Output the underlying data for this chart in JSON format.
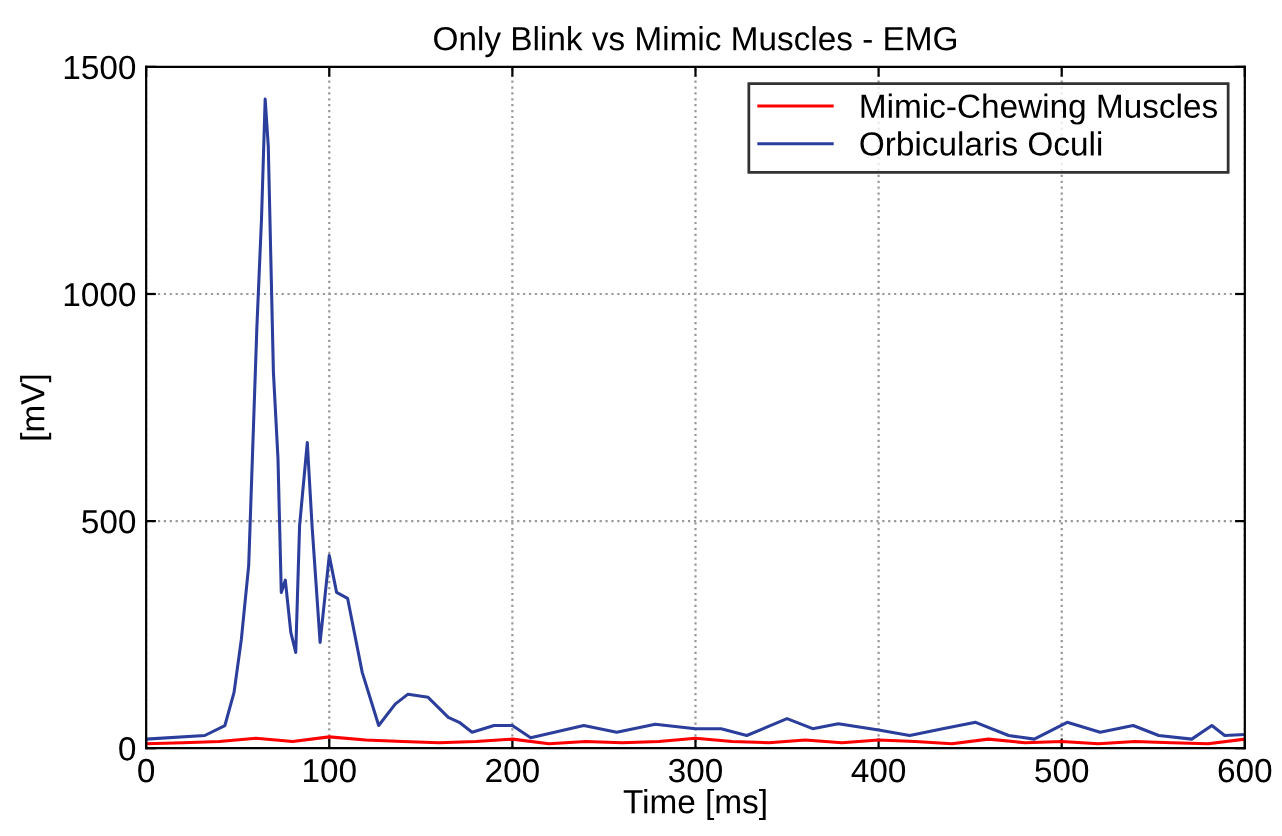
{
  "chart_data": {
    "type": "line",
    "title": "Only Blink vs Mimic Muscles - EMG",
    "xlabel": "Time [ms]",
    "ylabel": "[mV]",
    "xlim": [
      0,
      600
    ],
    "ylim": [
      0,
      1500
    ],
    "xticks": [
      0,
      100,
      200,
      300,
      400,
      500,
      600
    ],
    "yticks": [
      0,
      500,
      1000,
      1500
    ],
    "grid": true,
    "legend": "top right",
    "line_style": "solid",
    "marker": "none",
    "series": [
      {
        "name": "Mimic-Chewing Muscles",
        "color": "#ff0000",
        "x": [
          0,
          20,
          40,
          60,
          80,
          100,
          120,
          140,
          160,
          180,
          200,
          220,
          240,
          260,
          280,
          300,
          320,
          340,
          360,
          380,
          400,
          420,
          440,
          460,
          480,
          500,
          520,
          540,
          560,
          580,
          600
        ],
        "values": [
          10,
          12,
          15,
          22,
          15,
          25,
          18,
          15,
          12,
          15,
          20,
          10,
          15,
          12,
          15,
          22,
          15,
          12,
          18,
          12,
          18,
          15,
          10,
          20,
          12,
          15,
          10,
          15,
          12,
          10,
          20
        ]
      },
      {
        "name": "Orbicularis Oculi",
        "color": "#2b3e9c",
        "x": [
          0,
          32,
          43,
          48,
          52,
          56,
          60.5,
          63,
          65,
          66.7,
          69.5,
          72,
          73.8,
          76,
          79,
          81.7,
          83.8,
          88,
          90.6,
          95,
          100,
          104,
          110,
          118,
          127,
          136,
          143,
          154,
          165,
          171,
          178,
          190,
          200,
          210,
          239,
          257,
          278,
          300,
          314,
          328,
          350,
          364,
          378,
          400,
          417,
          435,
          453,
          471,
          485,
          503,
          521,
          539,
          553,
          571,
          582,
          589,
          600
        ],
        "values": [
          20,
          28,
          50,
          123,
          240,
          402,
          930,
          1165,
          1429,
          1325,
          828,
          637,
          343,
          370,
          255,
          211,
          490,
          673,
          490,
          233,
          424,
          343,
          330,
          167,
          50,
          97,
          119,
          112,
          68,
          57,
          35,
          50,
          50,
          23,
          50,
          35,
          53,
          43,
          43,
          28,
          65,
          43,
          54,
          40,
          28,
          43,
          57,
          28,
          20,
          57,
          35,
          50,
          28,
          20,
          50,
          28,
          30
        ]
      }
    ]
  }
}
